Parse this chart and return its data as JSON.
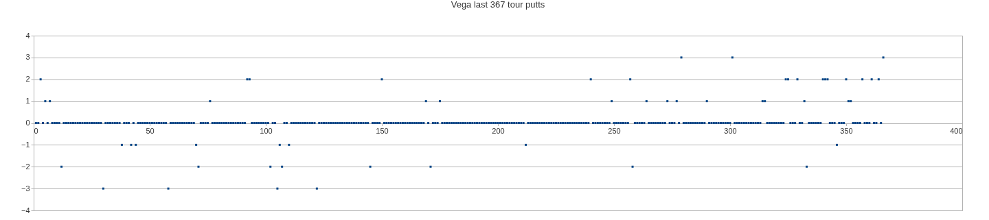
{
  "chart_data": {
    "type": "scatter",
    "title": "Vega last 367 tour putts",
    "x": [
      1,
      2,
      3,
      4,
      5,
      6,
      7,
      8,
      9,
      10,
      11,
      12,
      13,
      14,
      15,
      16,
      17,
      18,
      19,
      20,
      21,
      22,
      23,
      24,
      25,
      26,
      27,
      28,
      29,
      30,
      31,
      32,
      33,
      34,
      35,
      36,
      37,
      38,
      39,
      40,
      41,
      42,
      43,
      44,
      45,
      46,
      47,
      48,
      49,
      50,
      51,
      52,
      53,
      54,
      55,
      56,
      57,
      58,
      59,
      60,
      61,
      62,
      63,
      64,
      65,
      66,
      67,
      68,
      69,
      70,
      71,
      72,
      73,
      74,
      75,
      76,
      77,
      78,
      79,
      80,
      81,
      82,
      83,
      84,
      85,
      86,
      87,
      88,
      89,
      90,
      91,
      92,
      93,
      94,
      95,
      96,
      97,
      98,
      99,
      100,
      101,
      102,
      103,
      104,
      105,
      106,
      107,
      108,
      109,
      110,
      111,
      112,
      113,
      114,
      115,
      116,
      117,
      118,
      119,
      120,
      121,
      122,
      123,
      124,
      125,
      126,
      127,
      128,
      129,
      130,
      131,
      132,
      133,
      134,
      135,
      136,
      137,
      138,
      139,
      140,
      141,
      142,
      143,
      144,
      145,
      146,
      147,
      148,
      149,
      150,
      151,
      152,
      153,
      154,
      155,
      156,
      157,
      158,
      159,
      160,
      161,
      162,
      163,
      164,
      165,
      166,
      167,
      168,
      169,
      170,
      171,
      172,
      173,
      174,
      175,
      176,
      177,
      178,
      179,
      180,
      181,
      182,
      183,
      184,
      185,
      186,
      187,
      188,
      189,
      190,
      191,
      192,
      193,
      194,
      195,
      196,
      197,
      198,
      199,
      200,
      201,
      202,
      203,
      204,
      205,
      206,
      207,
      208,
      209,
      210,
      211,
      212,
      213,
      214,
      215,
      216,
      217,
      218,
      219,
      220,
      221,
      222,
      223,
      224,
      225,
      226,
      227,
      228,
      229,
      230,
      231,
      232,
      233,
      234,
      235,
      236,
      237,
      238,
      239,
      240,
      241,
      242,
      243,
      244,
      245,
      246,
      247,
      248,
      249,
      250,
      251,
      252,
      253,
      254,
      255,
      256,
      257,
      258,
      259,
      260,
      261,
      262,
      263,
      264,
      265,
      266,
      267,
      268,
      269,
      270,
      271,
      272,
      273,
      274,
      275,
      276,
      277,
      278,
      279,
      280,
      281,
      282,
      283,
      284,
      285,
      286,
      287,
      288,
      289,
      290,
      291,
      292,
      293,
      294,
      295,
      296,
      297,
      298,
      299,
      300,
      301,
      302,
      303,
      304,
      305,
      306,
      307,
      308,
      309,
      310,
      311,
      312,
      313,
      314,
      315,
      316,
      317,
      318,
      319,
      320,
      321,
      322,
      323,
      324,
      325,
      326,
      327,
      328,
      329,
      330,
      331,
      332,
      333,
      334,
      335,
      336,
      337,
      338,
      339,
      340,
      341,
      342,
      343,
      344,
      345,
      346,
      347,
      348,
      349,
      350,
      351,
      352,
      353,
      354,
      355,
      356,
      357,
      358,
      359,
      360,
      361,
      362,
      363,
      364,
      365,
      366
    ],
    "values": [
      0,
      0,
      2,
      0,
      1,
      0,
      1,
      0,
      0,
      0,
      0,
      -2,
      0,
      0,
      0,
      0,
      0,
      0,
      0,
      0,
      0,
      0,
      0,
      0,
      0,
      0,
      0,
      0,
      0,
      -3,
      0,
      0,
      0,
      0,
      0,
      0,
      0,
      -1,
      0,
      0,
      0,
      -1,
      0,
      -1,
      0,
      0,
      0,
      0,
      0,
      0,
      0,
      0,
      0,
      0,
      0,
      0,
      0,
      -3,
      0,
      0,
      0,
      0,
      0,
      0,
      0,
      0,
      0,
      0,
      0,
      -1,
      -2,
      0,
      0,
      0,
      0,
      1,
      0,
      0,
      0,
      0,
      0,
      0,
      0,
      0,
      0,
      0,
      0,
      0,
      0,
      0,
      0,
      2,
      2,
      0,
      0,
      0,
      0,
      0,
      0,
      0,
      0,
      -2,
      0,
      0,
      -3,
      -1,
      -2,
      0,
      0,
      -1,
      0,
      0,
      0,
      0,
      0,
      0,
      0,
      0,
      0,
      0,
      0,
      -3,
      0,
      0,
      0,
      0,
      0,
      0,
      0,
      0,
      0,
      0,
      0,
      0,
      0,
      0,
      0,
      0,
      0,
      0,
      0,
      0,
      0,
      0,
      -2,
      0,
      0,
      0,
      0,
      2,
      0,
      0,
      0,
      0,
      0,
      0,
      0,
      0,
      0,
      0,
      0,
      0,
      0,
      0,
      0,
      0,
      0,
      0,
      1,
      0,
      -2,
      0,
      0,
      0,
      1,
      0,
      0,
      0,
      0,
      0,
      0,
      0,
      0,
      0,
      0,
      0,
      0,
      0,
      0,
      0,
      0,
      0,
      0,
      0,
      0,
      0,
      0,
      0,
      0,
      0,
      0,
      0,
      0,
      0,
      0,
      0,
      0,
      0,
      0,
      0,
      0,
      -1,
      0,
      0,
      0,
      0,
      0,
      0,
      0,
      0,
      0,
      0,
      0,
      0,
      0,
      0,
      0,
      0,
      0,
      0,
      0,
      0,
      0,
      0,
      0,
      0,
      0,
      0,
      0,
      2,
      0,
      0,
      0,
      0,
      0,
      0,
      0,
      0,
      1,
      0,
      0,
      0,
      0,
      0,
      0,
      0,
      2,
      -2,
      0,
      0,
      0,
      0,
      0,
      1,
      0,
      0,
      0,
      0,
      0,
      0,
      0,
      0,
      1,
      0,
      0,
      0,
      1,
      0,
      3,
      0,
      0,
      0,
      0,
      0,
      0,
      0,
      0,
      0,
      0,
      1,
      0,
      0,
      0,
      0,
      0,
      0,
      0,
      0,
      0,
      0,
      3,
      0,
      0,
      0,
      0,
      0,
      0,
      0,
      0,
      0,
      0,
      0,
      0,
      1,
      1,
      0,
      0,
      0,
      0,
      0,
      0,
      0,
      0,
      2,
      2,
      0,
      0,
      0,
      2,
      0,
      0,
      1,
      -2,
      0,
      0,
      0,
      0,
      0,
      0,
      2,
      2,
      2,
      0,
      0,
      0,
      -1,
      0,
      0,
      0,
      2,
      1,
      1,
      0,
      0,
      0,
      0,
      2,
      0,
      0,
      0,
      2,
      0,
      0,
      2,
      0,
      3
    ],
    "color": "#004586",
    "marker": "square",
    "xlim": [
      0,
      400
    ],
    "xticks": [
      0,
      50,
      100,
      150,
      200,
      250,
      300,
      350,
      400
    ],
    "ylim": [
      -4,
      4
    ],
    "yticks": [
      -4,
      -3,
      -2,
      -1,
      0,
      1,
      2,
      3,
      4
    ],
    "grid": "y"
  }
}
